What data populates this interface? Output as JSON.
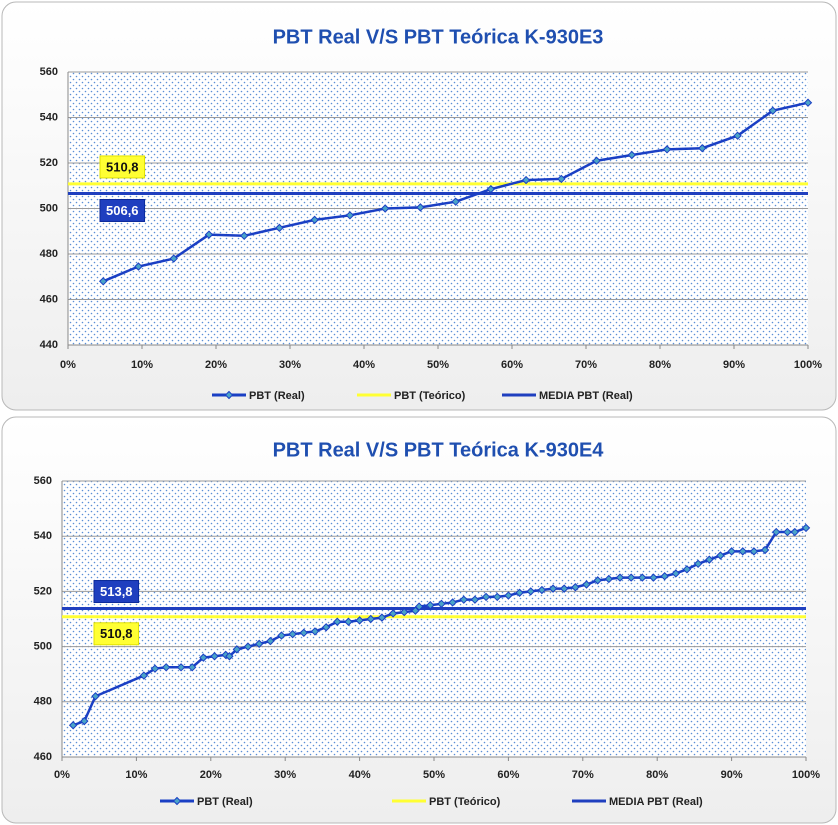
{
  "chart_data": [
    {
      "type": "line",
      "title": "PBT Real V/S PBT Teórica K-930E3",
      "xlim": [
        0,
        100
      ],
      "xticks": [
        {
          "value": 0,
          "label": "0%"
        },
        {
          "value": 10,
          "label": "10%"
        },
        {
          "value": 20,
          "label": "20%"
        },
        {
          "value": 30,
          "label": "30%"
        },
        {
          "value": 40,
          "label": "40%"
        },
        {
          "value": 50,
          "label": "50%"
        },
        {
          "value": 60,
          "label": "60%"
        },
        {
          "value": 70,
          "label": "70%"
        },
        {
          "value": 80,
          "label": "80%"
        },
        {
          "value": 90,
          "label": "90%"
        },
        {
          "value": 100,
          "label": "100%"
        }
      ],
      "ylim": [
        440,
        560
      ],
      "yticks": [
        440,
        460,
        480,
        500,
        520,
        540,
        560
      ],
      "grid": true,
      "x": [
        4.76,
        9.52,
        14.29,
        19.05,
        23.81,
        28.57,
        33.33,
        38.1,
        42.86,
        47.62,
        52.38,
        57.14,
        61.9,
        66.67,
        71.43,
        76.19,
        80.95,
        85.71,
        90.48,
        95.24,
        100
      ],
      "series": [
        {
          "name": "PBT (Real)",
          "color": "#1a3fc4",
          "marker_color": "#4aa3c8",
          "values": [
            468,
            474.5,
            478,
            488.5,
            488,
            491.5,
            495,
            497,
            500,
            500.5,
            503,
            508.5,
            512.5,
            513,
            521,
            523.5,
            526,
            526.5,
            532,
            543,
            546.5
          ]
        },
        {
          "name": "PBT (Teórico)",
          "color": "#ffff33",
          "value": 510.8,
          "value_label": "510,8"
        },
        {
          "name": "MEDIA PBT (Real)",
          "color": "#1f3fbf",
          "value": 506.6,
          "value_label": "506,6"
        }
      ]
    },
    {
      "type": "line",
      "title": "PBT Real V/S PBT Teórica K-930E4",
      "xlim": [
        0,
        100
      ],
      "xticks": [
        {
          "value": 0,
          "label": "0%"
        },
        {
          "value": 10,
          "label": "10%"
        },
        {
          "value": 20,
          "label": "20%"
        },
        {
          "value": 30,
          "label": "30%"
        },
        {
          "value": 40,
          "label": "40%"
        },
        {
          "value": 50,
          "label": "50%"
        },
        {
          "value": 60,
          "label": "60%"
        },
        {
          "value": 70,
          "label": "70%"
        },
        {
          "value": 80,
          "label": "80%"
        },
        {
          "value": 90,
          "label": "90%"
        },
        {
          "value": 100,
          "label": "100%"
        }
      ],
      "ylim": [
        460,
        560
      ],
      "yticks": [
        460,
        480,
        500,
        520,
        540,
        560
      ],
      "grid": true,
      "x": [
        1.5,
        3,
        4.5,
        11,
        12.5,
        14,
        16,
        17.5,
        19,
        20.5,
        22,
        22.5,
        23.5,
        25,
        26.5,
        28,
        29.5,
        31,
        32.5,
        34,
        35.5,
        37,
        38.5,
        40,
        41.5,
        43,
        44.5,
        46,
        47.5,
        48,
        49.5,
        51,
        52.5,
        54,
        55.5,
        57,
        58.5,
        60,
        61.5,
        63,
        64.5,
        66,
        67.5,
        69,
        70.5,
        72,
        73.5,
        75,
        76.5,
        78,
        79.5,
        81,
        82.5,
        84,
        85.5,
        87,
        88.5,
        90,
        91.5,
        93,
        94.5,
        96,
        97.5,
        98.5,
        100
      ],
      "series": [
        {
          "name": "PBT (Real)",
          "color": "#1a3fc4",
          "marker_color": "#4aa3c8",
          "values": [
            471.5,
            473,
            482,
            489.5,
            492,
            492.5,
            492.5,
            492.5,
            496,
            496.5,
            497,
            496.5,
            499,
            500,
            501,
            502,
            504,
            504.5,
            505,
            505.5,
            507,
            509,
            509,
            509.5,
            510,
            510.5,
            512,
            512.5,
            513,
            514.5,
            515,
            515.5,
            516,
            517,
            517,
            518,
            518,
            518.5,
            519.5,
            520,
            520.5,
            521,
            521,
            521.5,
            522.5,
            524,
            524.5,
            525,
            525,
            525,
            525,
            525.5,
            526.5,
            528,
            530,
            531.5,
            533,
            534.5,
            534.5,
            534.5,
            535,
            541.5,
            541.5,
            541.5,
            543
          ]
        },
        {
          "name": "PBT (Teórico)",
          "color": "#ffff33",
          "value": 510.8,
          "value_label": "510,8"
        },
        {
          "name": "MEDIA PBT (Real)",
          "color": "#1f3fbf",
          "value": 513.8,
          "value_label": "513,8"
        }
      ]
    }
  ]
}
